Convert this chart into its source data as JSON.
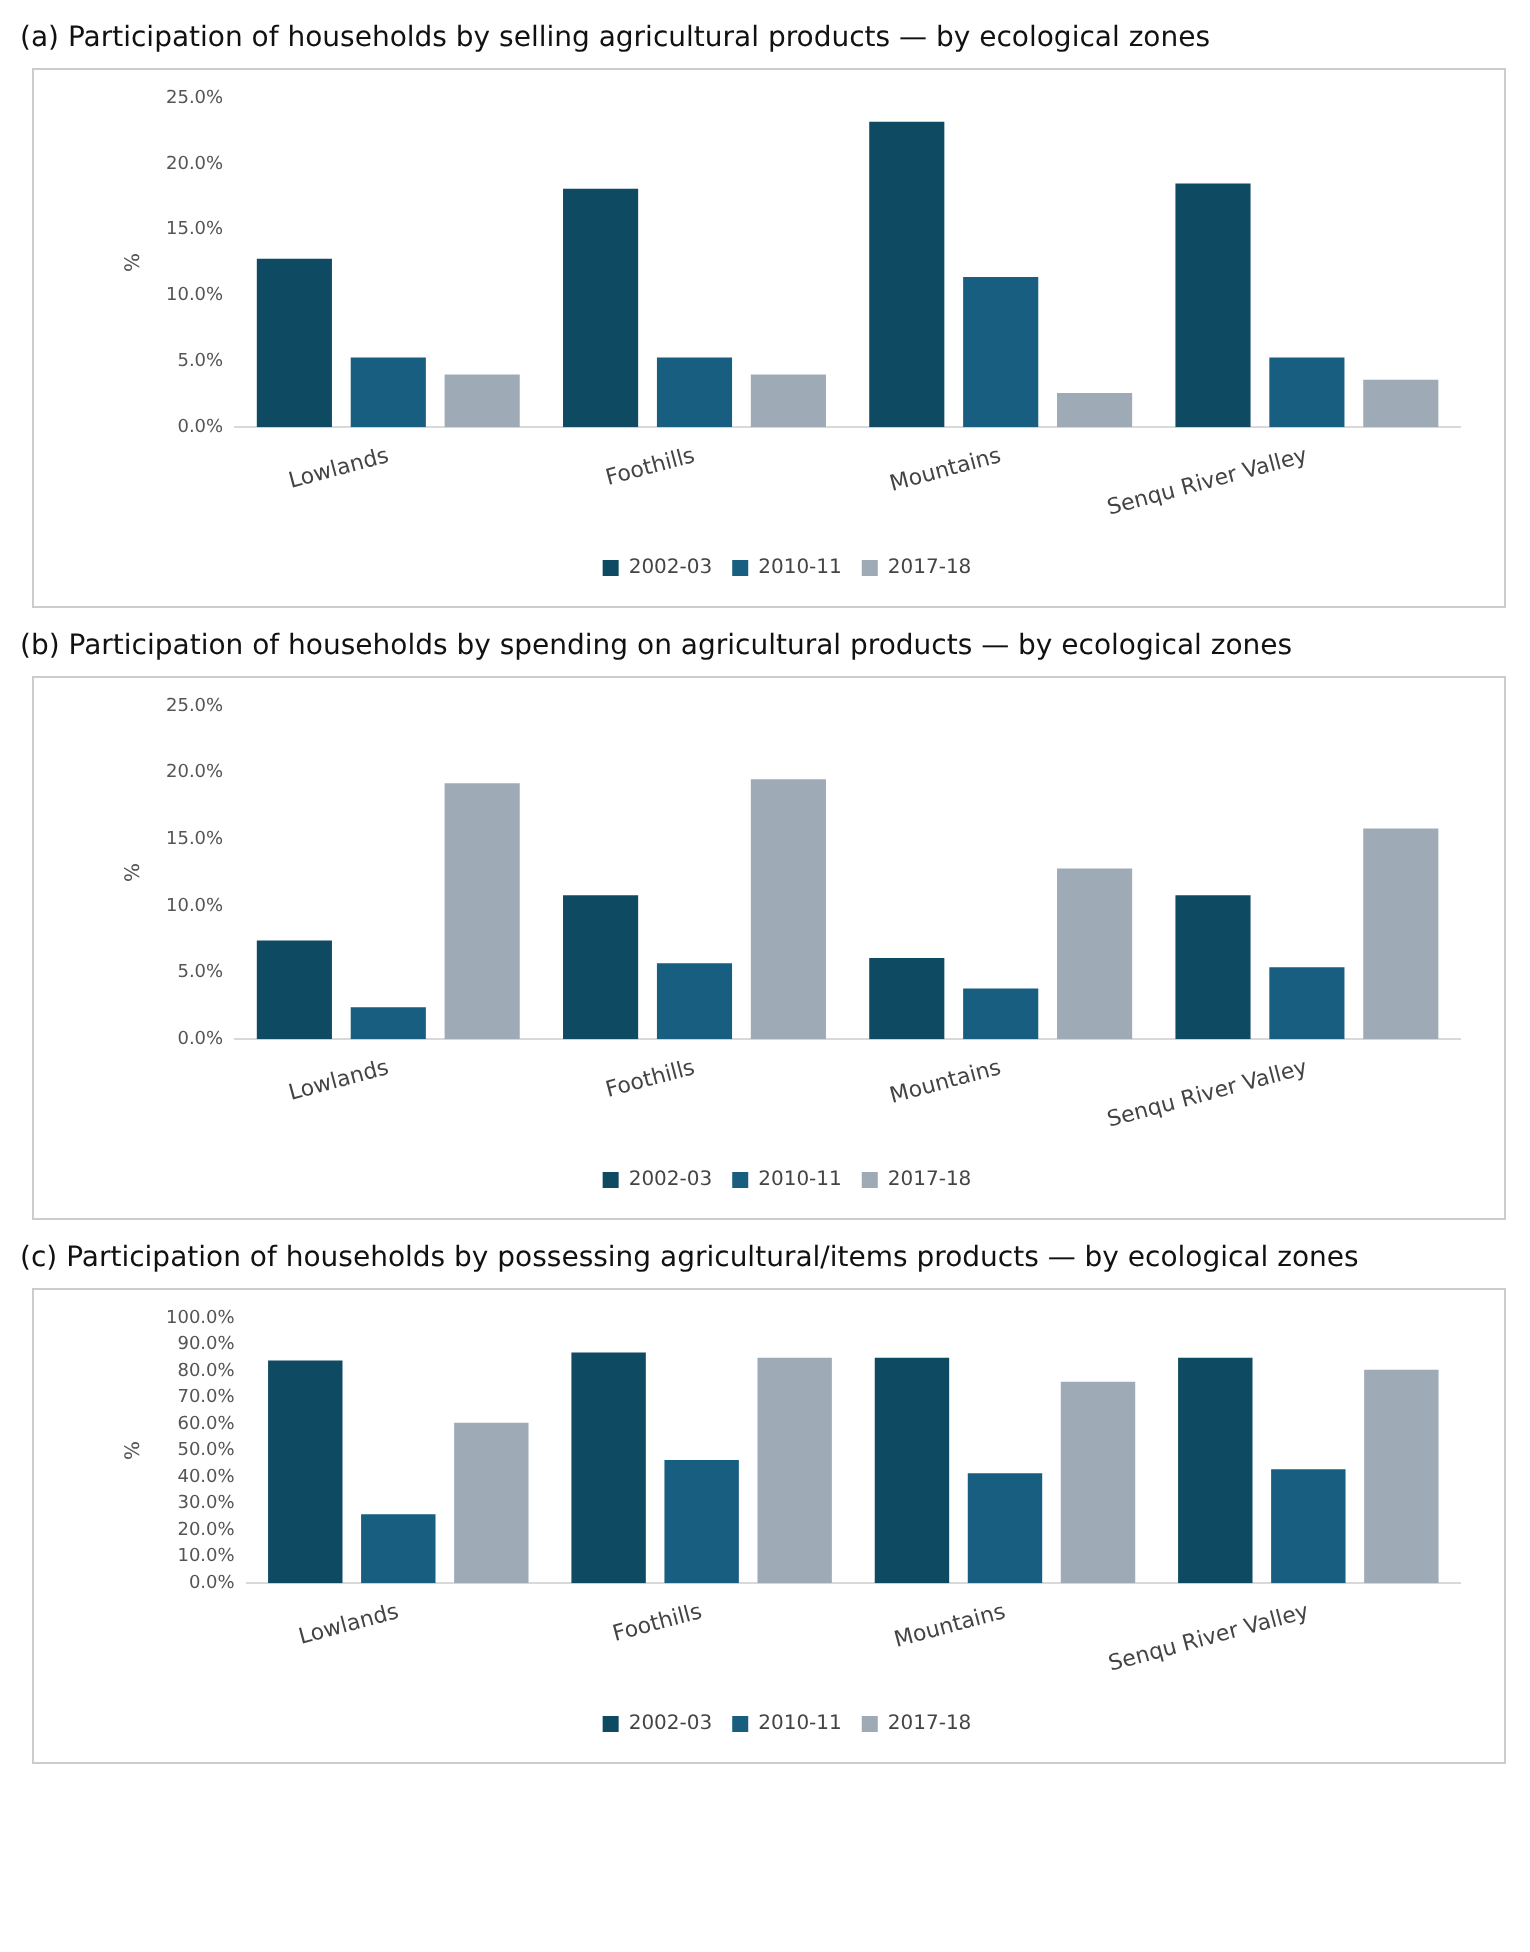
{
  "chart_data": [
    {
      "type": "bar",
      "title": "(a) Participation of households by selling agricultural products — by ecological zones",
      "ylabel": "%",
      "categories": [
        "Lowlands",
        "Foothills",
        "Mountains",
        "Senqu River Valley"
      ],
      "series": [
        {
          "name": "2002-03",
          "color": "#0f4a63",
          "values": [
            12.8,
            18.1,
            23.2,
            18.5
          ]
        },
        {
          "name": "2010-11",
          "color": "#175e80",
          "values": [
            5.3,
            5.3,
            11.4,
            5.3
          ]
        },
        {
          "name": "2017-18",
          "color": "#9eabb7",
          "values": [
            4.0,
            4.0,
            2.6,
            3.6
          ]
        }
      ],
      "ylim": [
        0,
        25
      ],
      "yticks": [
        {
          "value": 0,
          "label": "0.0%"
        },
        {
          "value": 5,
          "label": "5.0%"
        },
        {
          "value": 10,
          "label": "10.0%"
        },
        {
          "value": 15,
          "label": "15.0%"
        },
        {
          "value": 20,
          "label": "20.0%"
        },
        {
          "value": 25,
          "label": "25.0%"
        }
      ],
      "grid": false,
      "legend": "bottom"
    },
    {
      "type": "bar",
      "title": "(b) Participation of households by spending on agricultural products — by ecological zones",
      "ylabel": "%",
      "categories": [
        "Lowlands",
        "Foothills",
        "Mountains",
        "Senqu River Valley"
      ],
      "series": [
        {
          "name": "2002-03",
          "color": "#0f4a63",
          "values": [
            7.4,
            10.8,
            6.1,
            10.8
          ]
        },
        {
          "name": "2010-11",
          "color": "#175e80",
          "values": [
            2.4,
            5.7,
            3.8,
            5.4
          ]
        },
        {
          "name": "2017-18",
          "color": "#9eabb7",
          "values": [
            19.2,
            19.5,
            12.8,
            15.8
          ]
        }
      ],
      "ylim": [
        0,
        25
      ],
      "yticks": [
        {
          "value": 0,
          "label": "0.0%"
        },
        {
          "value": 5,
          "label": "5.0%"
        },
        {
          "value": 10,
          "label": "10.0%"
        },
        {
          "value": 15,
          "label": "15.0%"
        },
        {
          "value": 20,
          "label": "20.0%"
        },
        {
          "value": 25,
          "label": "25.0%"
        }
      ],
      "grid": false,
      "legend": "bottom"
    },
    {
      "type": "bar",
      "title": "(c) Participation of households by possessing agricultural/items products — by ecological zones",
      "ylabel": "%",
      "categories": [
        "Lowlands",
        "Foothills",
        "Mountains",
        "Senqu River Valley"
      ],
      "series": [
        {
          "name": "2002-03",
          "color": "#0f4a63",
          "values": [
            84,
            87,
            85,
            85
          ]
        },
        {
          "name": "2010-11",
          "color": "#175e80",
          "values": [
            26,
            46.5,
            41.5,
            43
          ]
        },
        {
          "name": "2017-18",
          "color": "#9eabb7",
          "values": [
            60.5,
            85,
            76,
            80.5
          ]
        }
      ],
      "ylim": [
        0,
        100
      ],
      "yticks": [
        {
          "value": 0,
          "label": "0.0%"
        },
        {
          "value": 10,
          "label": "10.0%"
        },
        {
          "value": 20,
          "label": "20.0%"
        },
        {
          "value": 30,
          "label": "30.0%"
        },
        {
          "value": 40,
          "label": "40.0%"
        },
        {
          "value": 50,
          "label": "50.0%"
        },
        {
          "value": 60,
          "label": "60.0%"
        },
        {
          "value": 70,
          "label": "70.0%"
        },
        {
          "value": 80,
          "label": "80.0%"
        },
        {
          "value": 90,
          "label": "90.0%"
        },
        {
          "value": 100,
          "label": "100.0%"
        }
      ],
      "grid": false,
      "legend": "bottom"
    }
  ]
}
